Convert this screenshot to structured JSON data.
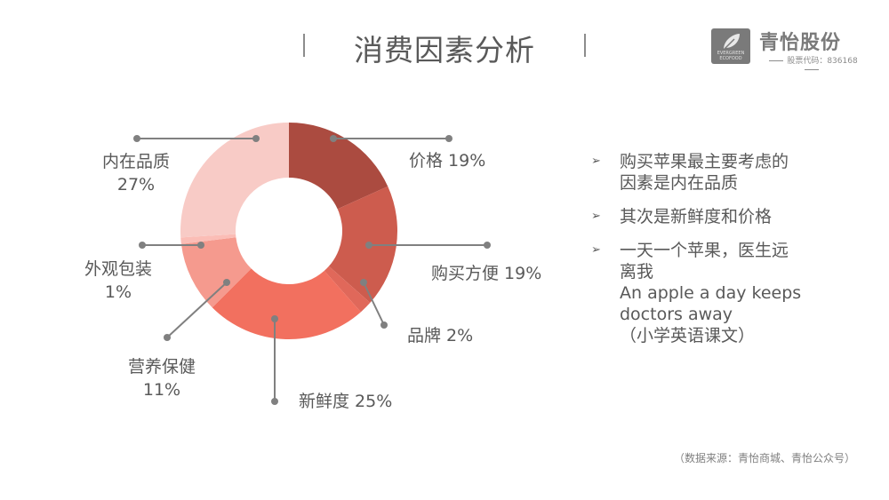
{
  "header": {
    "title": "消费因素分析"
  },
  "logo": {
    "name": "青怡股份",
    "code": "股票代码：836168",
    "box_text": "EVERGREEN ECOFOOD"
  },
  "chart_data": {
    "type": "pie",
    "title": "",
    "start_angle_deg": 0,
    "slices": [
      {
        "name": "价格",
        "value": 19,
        "display": "价格 19%",
        "color": "#ab4b40"
      },
      {
        "name": "购买方便",
        "value": 19,
        "display": "购买方便 19%",
        "color": "#cd5c4e"
      },
      {
        "name": "品牌",
        "value": 2,
        "display": "品牌 2%",
        "color": "#e0685a"
      },
      {
        "name": "新鲜度",
        "value": 25,
        "display": "新鲜度 25%",
        "color": "#f2705f"
      },
      {
        "name": "营养保健",
        "value": 11,
        "display": [
          "营养保健",
          "11%"
        ],
        "color": "#f59a8e"
      },
      {
        "name": "外观包装",
        "value": 1,
        "display": [
          "外观包装",
          "1%"
        ],
        "color": "#fbbdb6"
      },
      {
        "name": "内在品质",
        "value": 27,
        "display": [
          "内在品质",
          "27%"
        ],
        "color": "#f8cbc6"
      }
    ]
  },
  "bullets": [
    {
      "text": "购买苹果最主要考虑的\n因素是内在品质"
    },
    {
      "text": "其次是新鲜度和价格"
    },
    {
      "text": "一天一个苹果，医生远\n离我\nAn apple a day keeps\ndoctors away\n（小学英语课文）"
    }
  ],
  "footer": {
    "source": "（数据来源：青怡商城、青怡公众号）"
  },
  "icons": {
    "bullet": "arrow-bullet-icon"
  }
}
